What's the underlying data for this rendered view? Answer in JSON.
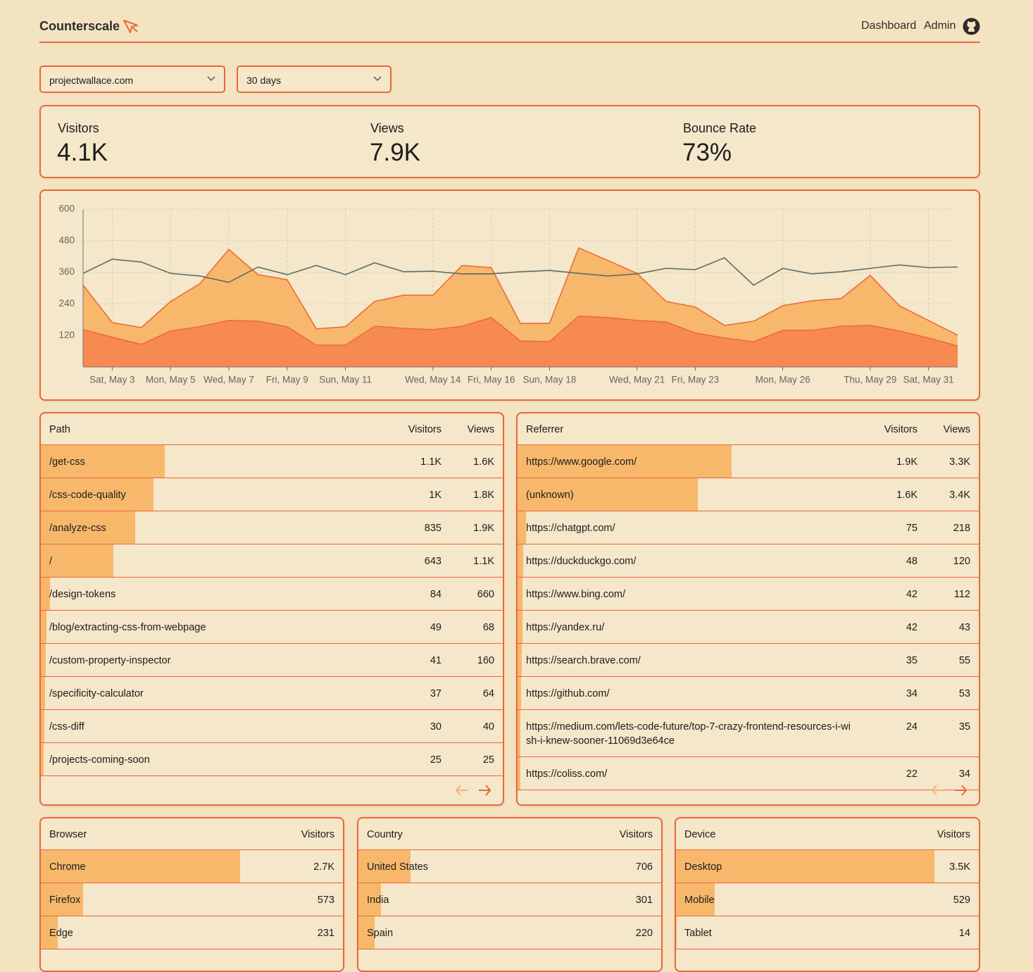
{
  "header": {
    "brand": "Counterscale",
    "nav": [
      "Dashboard",
      "Admin"
    ]
  },
  "filters": {
    "site": "projectwallace.com",
    "range": "30 days"
  },
  "stats": [
    {
      "label": "Visitors",
      "value": {
        "value": 4100,
        "label": "4.1K"
      }
    },
    {
      "label": "Views",
      "value": {
        "value": 7900,
        "label": "7.9K"
      }
    },
    {
      "label": "Bounce Rate",
      "value": {
        "value": 73,
        "label": "73%"
      }
    }
  ],
  "chart_data": {
    "type": "area",
    "categories": [
      null,
      "Sat, May 3",
      null,
      "Mon, May 5",
      null,
      "Wed, May 7",
      null,
      "Fri, May 9",
      null,
      "Sun, May 11",
      null,
      null,
      "Wed, May 14",
      null,
      "Fri, May 16",
      null,
      "Sun, May 18",
      null,
      null,
      "Wed, May 21",
      null,
      "Fri, May 23",
      null,
      null,
      "Mon, May 26",
      null,
      null,
      "Thu, May 29",
      null,
      "Sat, May 31",
      null
    ],
    "ylim": [
      0,
      600
    ],
    "yticks": [
      120,
      240,
      360,
      480,
      600
    ],
    "grid": true,
    "series": [
      {
        "type": "area",
        "color": "#f7b86b",
        "line_color": "#ee6a3b",
        "values": [
          311,
          169,
          150,
          249,
          316,
          447,
          351,
          332,
          145,
          153,
          249,
          273,
          273,
          386,
          378,
          166,
          166,
          453,
          405,
          356,
          249,
          228,
          158,
          174,
          233,
          252,
          260,
          348,
          233,
          177,
          121
        ]
      },
      {
        "type": "area",
        "color": "#f78a50",
        "line_color": "#ee6a3b",
        "values": [
          142,
          113,
          86,
          137,
          153,
          177,
          174,
          153,
          83,
          83,
          155,
          147,
          142,
          155,
          188,
          99,
          96,
          193,
          188,
          177,
          171,
          129,
          110,
          96,
          139,
          139,
          155,
          158,
          137,
          110,
          80
        ]
      },
      {
        "type": "line",
        "color": "#5b6e68",
        "values": [
          356,
          410,
          399,
          356,
          346,
          322,
          380,
          351,
          386,
          351,
          396,
          362,
          364,
          354,
          354,
          362,
          367,
          356,
          346,
          354,
          375,
          370,
          415,
          311,
          375,
          354,
          362,
          375,
          388,
          378,
          380
        ]
      }
    ]
  },
  "tables": [
    {
      "columns": [
        "Path",
        "Visitors",
        "Views"
      ],
      "rows": [
        [
          "/get-css",
          {
            "value": 1100,
            "label": "1.1K"
          },
          "1.6K"
        ],
        [
          "/css-code-quality",
          {
            "value": 1000,
            "label": "1K"
          },
          "1.8K"
        ],
        [
          "/analyze-css",
          835,
          "1.9K"
        ],
        [
          "/",
          643,
          "1.1K"
        ],
        [
          "/design-tokens",
          84,
          660
        ],
        [
          "/blog/extracting-css-from-webpage",
          49,
          68
        ],
        [
          "/custom-property-inspector",
          41,
          160
        ],
        [
          "/specificity-calculator",
          37,
          64
        ],
        [
          "/css-diff",
          30,
          40
        ],
        [
          "/projects-coming-soon",
          25,
          25
        ]
      ]
    },
    {
      "columns": [
        "Referrer",
        "Visitors",
        "Views"
      ],
      "rows": [
        [
          "https://www.google.com/",
          {
            "value": 1900,
            "label": "1.9K"
          },
          "3.3K"
        ],
        [
          "(unknown)",
          {
            "value": 1600,
            "label": "1.6K"
          },
          "3.4K"
        ],
        [
          "https://chatgpt.com/",
          75,
          218
        ],
        [
          "https://duckduckgo.com/",
          48,
          120
        ],
        [
          "https://www.bing.com/",
          42,
          112
        ],
        [
          "https://yandex.ru/",
          42,
          43
        ],
        [
          "https://search.brave.com/",
          35,
          55
        ],
        [
          "https://github.com/",
          34,
          53
        ],
        [
          "https://medium.com/lets-code-future/top-7-crazy-frontend-resources-i-wish-i-knew-sooner-11069d3e64ce",
          24,
          35
        ],
        [
          "https://coliss.com/",
          22,
          34
        ]
      ]
    },
    {
      "columns": [
        "Browser",
        "Visitors"
      ],
      "rows": [
        [
          "Chrome",
          {
            "value": 2700,
            "label": "2.7K"
          }
        ],
        [
          "Firefox",
          573
        ],
        [
          "Edge",
          231
        ]
      ]
    },
    {
      "columns": [
        "Country",
        "Visitors"
      ],
      "rows": [
        [
          "United States",
          706
        ],
        [
          "India",
          301
        ],
        [
          "Spain",
          220
        ]
      ]
    },
    {
      "columns": [
        "Device",
        "Visitors"
      ],
      "rows": [
        [
          "Desktop",
          {
            "value": 3500,
            "label": "3.5K"
          }
        ],
        [
          "Mobile",
          529
        ],
        [
          "Tablet",
          14
        ]
      ]
    }
  ]
}
